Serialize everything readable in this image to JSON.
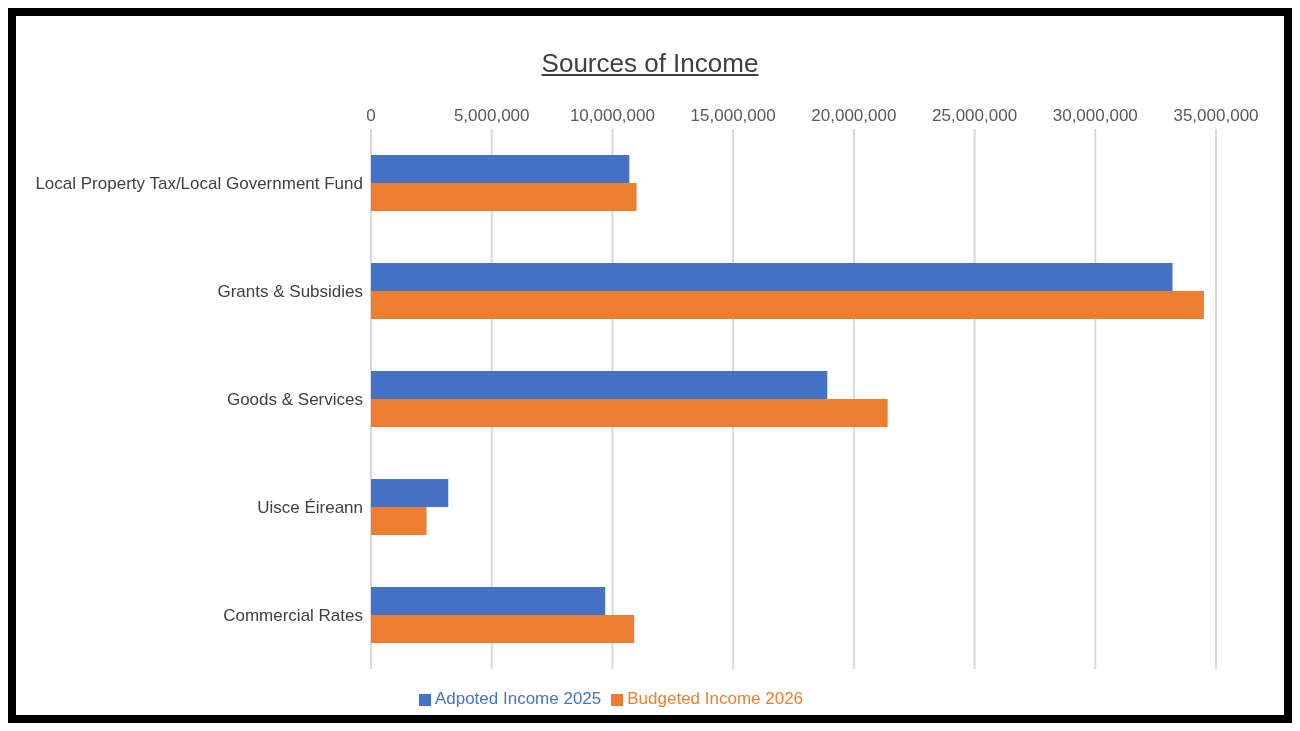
{
  "chart_data": {
    "type": "bar",
    "orientation": "horizontal",
    "title": "Sources of Income",
    "categories": [
      "Local Property Tax/Local Government Fund",
      "Grants & Subsidies",
      "Goods & Services",
      "Uisce Éireann",
      "Commercial Rates"
    ],
    "series": [
      {
        "name": "Adpoted Income 2025",
        "color": "#4472c4",
        "values": [
          10700000,
          33200000,
          18900000,
          3200000,
          9700000
        ]
      },
      {
        "name": "Budgeted Income 2026",
        "color": "#ed7d31",
        "values": [
          11000000,
          34500000,
          21400000,
          2300000,
          10900000
        ]
      }
    ],
    "xlim": [
      0,
      35000000
    ],
    "xticks": [
      0,
      {
        "value": 5000000,
        "label": "5,000,000"
      },
      {
        "value": 10000000,
        "label": "10,000,000"
      },
      {
        "value": 15000000,
        "label": "15,000,000"
      },
      {
        "value": 20000000,
        "label": "20,000,000"
      },
      {
        "value": 25000000,
        "label": "25,000,000"
      },
      {
        "value": 30000000,
        "label": "30,000,000"
      },
      {
        "value": 35000000,
        "label": "35,000,000"
      }
    ],
    "grid": "x",
    "legend": "bottom"
  }
}
